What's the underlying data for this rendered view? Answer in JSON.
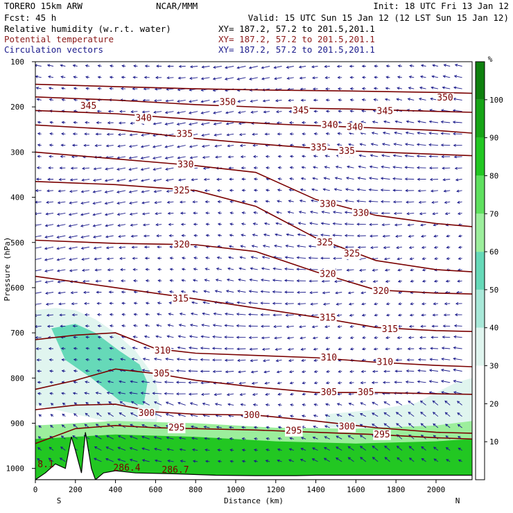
{
  "header": {
    "model": "TORERO  15km ARW",
    "org": "NCAR/MMM",
    "init": "Init: 18 UTC Fri 13 Jan 12",
    "fcst": "Fcst:   45 h",
    "valid": "Valid: 15 UTC Sun 15 Jan 12 (12 LST Sun 15 Jan 12)",
    "fields": [
      {
        "label": "Relative humidity (w.r.t. water)",
        "xy": "XY= 187.2, 57.2 to 201.5,201.1",
        "color": "#000000"
      },
      {
        "label": "Potential temperature",
        "xy": "XY= 187.2, 57.2 to 201.5,201.1",
        "color": "#8b1a1a"
      },
      {
        "label": "Circulation vectors",
        "xy": "XY= 187.2, 57.2 to 201.5,201.1",
        "color": "#1a1a8b"
      }
    ]
  },
  "colorbar": {
    "unit": "%",
    "ticks": [
      "10",
      "20",
      "30",
      "40",
      "50",
      "60",
      "70",
      "80",
      "90",
      "100"
    ],
    "levels": [
      0,
      10,
      20,
      30,
      40,
      50,
      60,
      70,
      80,
      90,
      100,
      110
    ],
    "colors": [
      "#ffffff",
      "#ffffff",
      "#ffffff",
      "#e0f5ef",
      "#a8e8d8",
      "#66d9b8",
      "#9cee9c",
      "#5fe05f",
      "#22c722",
      "#16a416",
      "#0e800e"
    ]
  },
  "chart_data": {
    "type": "cross-section",
    "xlabel": "Distance (km)",
    "ylabel": "Pressure (hPa)",
    "xlim": [
      0,
      2180
    ],
    "ylim": [
      1025,
      100
    ],
    "x_ticks": [
      "0",
      "200",
      "400",
      "600",
      "800",
      "1000",
      "1200",
      "1400",
      "1600",
      "1800",
      "2000"
    ],
    "y_ticks": [
      "100",
      "200",
      "300",
      "400",
      "500",
      "600",
      "700",
      "800",
      "900",
      "1000"
    ],
    "x_ends": {
      "left": "S",
      "right": "N"
    },
    "terrain_values": [
      "8.1",
      "286.4",
      "286.7"
    ],
    "theta_labels": [
      {
        "text": "350",
        "x": 960,
        "p": 190
      },
      {
        "text": "350",
        "x": 2045,
        "p": 180
      },
      {
        "text": "345",
        "x": 265,
        "p": 198
      },
      {
        "text": "345",
        "x": 1325,
        "p": 208
      },
      {
        "text": "345",
        "x": 1745,
        "p": 210
      },
      {
        "text": "340",
        "x": 540,
        "p": 225
      },
      {
        "text": "340",
        "x": 1470,
        "p": 240
      },
      {
        "text": "340",
        "x": 1595,
        "p": 245
      },
      {
        "text": "335",
        "x": 745,
        "p": 260
      },
      {
        "text": "335",
        "x": 1415,
        "p": 290
      },
      {
        "text": "335",
        "x": 1555,
        "p": 298
      },
      {
        "text": "330",
        "x": 750,
        "p": 328
      },
      {
        "text": "330",
        "x": 1460,
        "p": 415
      },
      {
        "text": "330",
        "x": 1625,
        "p": 435
      },
      {
        "text": "325",
        "x": 730,
        "p": 385
      },
      {
        "text": "325",
        "x": 1445,
        "p": 500
      },
      {
        "text": "325",
        "x": 1580,
        "p": 525
      },
      {
        "text": "320",
        "x": 730,
        "p": 505
      },
      {
        "text": "320",
        "x": 1460,
        "p": 570
      },
      {
        "text": "320",
        "x": 1725,
        "p": 608
      },
      {
        "text": "315",
        "x": 725,
        "p": 625
      },
      {
        "text": "315",
        "x": 1460,
        "p": 667
      },
      {
        "text": "315",
        "x": 1770,
        "p": 692
      },
      {
        "text": "310",
        "x": 635,
        "p": 740
      },
      {
        "text": "310",
        "x": 1465,
        "p": 755
      },
      {
        "text": "310",
        "x": 1745,
        "p": 765
      },
      {
        "text": "305",
        "x": 630,
        "p": 790
      },
      {
        "text": "305",
        "x": 1465,
        "p": 832
      },
      {
        "text": "305",
        "x": 1650,
        "p": 832
      },
      {
        "text": "300",
        "x": 555,
        "p": 878
      },
      {
        "text": "300",
        "x": 1080,
        "p": 882
      },
      {
        "text": "300",
        "x": 1555,
        "p": 908
      },
      {
        "text": "295",
        "x": 705,
        "p": 910
      },
      {
        "text": "295",
        "x": 1290,
        "p": 917
      },
      {
        "text": "295",
        "x": 1730,
        "p": 925
      }
    ],
    "theta_lines": [
      {
        "theta": 350,
        "x": [
          0,
          400,
          800,
          1200,
          1600,
          2000,
          2180
        ],
        "p": [
          150,
          155,
          160,
          163,
          165,
          168,
          170
        ]
      },
      {
        "theta": 345,
        "x": [
          0,
          400,
          800,
          1200,
          1600,
          2000,
          2180
        ],
        "p": [
          178,
          185,
          195,
          202,
          205,
          210,
          212
        ]
      },
      {
        "theta": 340,
        "x": [
          0,
          400,
          800,
          1200,
          1600,
          2000,
          2180
        ],
        "p": [
          208,
          215,
          228,
          238,
          245,
          252,
          258
        ]
      },
      {
        "theta": 335,
        "x": [
          0,
          400,
          800,
          1200,
          1600,
          2000,
          2180
        ],
        "p": [
          240,
          250,
          270,
          285,
          298,
          305,
          308
        ]
      },
      {
        "theta": 330,
        "x": [
          0,
          400,
          800,
          1100,
          1400,
          1700,
          2000,
          2180
        ],
        "p": [
          300,
          315,
          330,
          345,
          405,
          440,
          458,
          465
        ]
      },
      {
        "theta": 325,
        "x": [
          0,
          400,
          800,
          1100,
          1400,
          1700,
          2000,
          2180
        ],
        "p": [
          365,
          372,
          385,
          420,
          490,
          540,
          560,
          565
        ]
      },
      {
        "theta": 320,
        "x": [
          0,
          400,
          800,
          1100,
          1400,
          1700,
          2000,
          2180
        ],
        "p": [
          495,
          502,
          505,
          520,
          565,
          605,
          612,
          614
        ]
      },
      {
        "theta": 315,
        "x": [
          0,
          400,
          800,
          1100,
          1400,
          1700,
          2000,
          2180
        ],
        "p": [
          575,
          600,
          625,
          645,
          665,
          688,
          695,
          697
        ]
      },
      {
        "theta": 310,
        "x": [
          0,
          200,
          400,
          600,
          800,
          1100,
          1400,
          1700,
          2000,
          2180
        ],
        "p": [
          715,
          705,
          700,
          735,
          745,
          750,
          755,
          765,
          772,
          775
        ]
      },
      {
        "theta": 305,
        "x": [
          0,
          200,
          400,
          600,
          800,
          1100,
          1400,
          1700,
          2000,
          2180
        ],
        "p": [
          825,
          805,
          780,
          790,
          805,
          820,
          832,
          832,
          835,
          836
        ]
      },
      {
        "theta": 300,
        "x": [
          0,
          200,
          400,
          600,
          800,
          1100,
          1400,
          1700,
          2000,
          2180
        ],
        "p": [
          870,
          860,
          858,
          875,
          880,
          882,
          895,
          910,
          920,
          922
        ]
      },
      {
        "theta": 295,
        "x": [
          0,
          200,
          400,
          600,
          800,
          1100,
          1400,
          1700,
          2000,
          2180
        ],
        "p": [
          945,
          912,
          905,
          910,
          912,
          915,
          920,
          925,
          932,
          935
        ]
      }
    ],
    "rh_regions": [
      {
        "rh": 35,
        "x": [
          0,
          100,
          200,
          300,
          400,
          500,
          600,
          620,
          600,
          400,
          200,
          0
        ],
        "p": [
          650,
          645,
          650,
          670,
          700,
          740,
          800,
          860,
          910,
          900,
          880,
          860
        ]
      },
      {
        "rh": 55,
        "x": [
          80,
          200,
          300,
          420,
          520,
          560,
          540,
          420,
          280,
          150
        ],
        "p": [
          690,
          680,
          700,
          740,
          770,
          810,
          860,
          850,
          800,
          760
        ]
      },
      {
        "rh": 35,
        "x": [
          1450,
          1700,
          1900,
          2100,
          2180,
          2180,
          1450
        ],
        "p": [
          880,
          870,
          855,
          810,
          800,
          910,
          910
        ]
      },
      {
        "rh": 65,
        "x": [
          0,
          400,
          800,
          1200,
          1600,
          2000,
          2180,
          2180,
          0
        ],
        "p": [
          905,
          895,
          900,
          910,
          912,
          905,
          895,
          945,
          945
        ]
      },
      {
        "rh": 85,
        "x": [
          0,
          400,
          800,
          1200,
          1600,
          2000,
          2180,
          2180,
          0
        ],
        "p": [
          935,
          925,
          930,
          940,
          945,
          940,
          935,
          1025,
          1025
        ]
      }
    ],
    "terrain": {
      "x": [
        0,
        50,
        100,
        150,
        180,
        200,
        230,
        250,
        280,
        300,
        340,
        400,
        500,
        700,
        900,
        1100,
        1300,
        1400,
        1700,
        2000,
        2180
      ],
      "p": [
        1025,
        1010,
        990,
        1000,
        930,
        960,
        1010,
        920,
        1000,
        1025,
        1010,
        1005,
        1010,
        1012,
        1015,
        1016,
        1016,
        1015,
        1015,
        1015,
        1015
      ]
    }
  }
}
